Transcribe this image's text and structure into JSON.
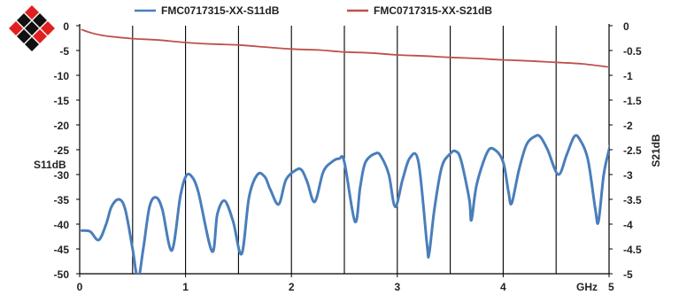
{
  "logo": {
    "icon": "diamond-grid-logo-icon",
    "colors": [
      "#e02020",
      "#111111"
    ]
  },
  "chart_data": {
    "type": "line",
    "x_label": "GHz",
    "y_left_label": "S11dB",
    "y_right_label": "S21dB",
    "x_range": [
      0,
      5
    ],
    "y_left_range": [
      -50,
      0
    ],
    "y_right_range": [
      -5,
      0
    ],
    "x_ticks": [
      "0",
      "1",
      "2",
      "3",
      "4",
      "5"
    ],
    "y_left_ticks": [
      "0",
      "-5",
      "-10",
      "-15",
      "-20",
      "-25",
      "-30",
      "-35",
      "-40",
      "-45",
      "-50"
    ],
    "y_right_ticks": [
      "0",
      "-0.5",
      "-1",
      "-1.5",
      "-2",
      "-2.5",
      "-3",
      "-3.5",
      "-4",
      "-4.5",
      "-5"
    ],
    "grid": "vertical-at-half-GHz",
    "legend_position": "top",
    "series": [
      {
        "name": "FMC0717315-XX-S11dB",
        "axis": "left",
        "color": "#4a7ebb",
        "points": [
          [
            0.02,
            -41.3
          ],
          [
            0.1,
            -41.5
          ],
          [
            0.18,
            -43.2
          ],
          [
            0.25,
            -40
          ],
          [
            0.3,
            -36.5
          ],
          [
            0.37,
            -35
          ],
          [
            0.43,
            -37
          ],
          [
            0.5,
            -45
          ],
          [
            0.55,
            -51
          ],
          [
            0.6,
            -45
          ],
          [
            0.66,
            -36.5
          ],
          [
            0.72,
            -34.6
          ],
          [
            0.78,
            -37
          ],
          [
            0.87,
            -45.3
          ],
          [
            0.95,
            -34.5
          ],
          [
            1.0,
            -30.5
          ],
          [
            1.05,
            -30.2
          ],
          [
            1.12,
            -33.5
          ],
          [
            1.25,
            -45.5
          ],
          [
            1.3,
            -38
          ],
          [
            1.37,
            -35.3
          ],
          [
            1.45,
            -39.5
          ],
          [
            1.53,
            -46
          ],
          [
            1.6,
            -34.5
          ],
          [
            1.68,
            -30
          ],
          [
            1.75,
            -30.5
          ],
          [
            1.8,
            -33
          ],
          [
            1.88,
            -36
          ],
          [
            1.95,
            -31
          ],
          [
            2.05,
            -29
          ],
          [
            2.1,
            -29.2
          ],
          [
            2.15,
            -31.5
          ],
          [
            2.22,
            -35.5
          ],
          [
            2.3,
            -29.5
          ],
          [
            2.38,
            -27.5
          ],
          [
            2.45,
            -26.8
          ],
          [
            2.5,
            -27.5
          ],
          [
            2.6,
            -39.5
          ],
          [
            2.65,
            -32.5
          ],
          [
            2.7,
            -27.5
          ],
          [
            2.8,
            -25.7
          ],
          [
            2.85,
            -26.5
          ],
          [
            2.92,
            -30
          ],
          [
            2.98,
            -36.5
          ],
          [
            3.05,
            -31
          ],
          [
            3.12,
            -26.6
          ],
          [
            3.2,
            -27.5
          ],
          [
            3.28,
            -44
          ],
          [
            3.3,
            -46
          ],
          [
            3.35,
            -37
          ],
          [
            3.42,
            -28.5
          ],
          [
            3.5,
            -25.8
          ],
          [
            3.55,
            -25.3
          ],
          [
            3.6,
            -27
          ],
          [
            3.68,
            -35
          ],
          [
            3.7,
            -39.2
          ],
          [
            3.75,
            -32
          ],
          [
            3.85,
            -25.5
          ],
          [
            3.92,
            -25
          ],
          [
            4.0,
            -27.5
          ],
          [
            4.05,
            -33.5
          ],
          [
            4.08,
            -35.8
          ],
          [
            4.15,
            -29
          ],
          [
            4.22,
            -24
          ],
          [
            4.3,
            -22.3
          ],
          [
            4.35,
            -22.4
          ],
          [
            4.42,
            -25
          ],
          [
            4.52,
            -30
          ],
          [
            4.6,
            -26
          ],
          [
            4.67,
            -22.4
          ],
          [
            4.72,
            -22.8
          ],
          [
            4.8,
            -27
          ],
          [
            4.87,
            -37
          ],
          [
            4.9,
            -39.5
          ],
          [
            4.95,
            -30
          ],
          [
            5.0,
            -25
          ],
          [
            5.02,
            -23.2
          ]
        ]
      },
      {
        "name": "FMC0717315-XX-S21dB",
        "axis": "right",
        "color": "#c0504d",
        "points": [
          [
            0.02,
            -0.08
          ],
          [
            0.1,
            -0.14
          ],
          [
            0.2,
            -0.19
          ],
          [
            0.3,
            -0.22
          ],
          [
            0.5,
            -0.26
          ],
          [
            0.75,
            -0.29
          ],
          [
            1.0,
            -0.34
          ],
          [
            1.25,
            -0.37
          ],
          [
            1.5,
            -0.39
          ],
          [
            1.75,
            -0.43
          ],
          [
            2.0,
            -0.47
          ],
          [
            2.25,
            -0.49
          ],
          [
            2.5,
            -0.53
          ],
          [
            2.75,
            -0.55
          ],
          [
            3.0,
            -0.59
          ],
          [
            3.25,
            -0.61
          ],
          [
            3.5,
            -0.64
          ],
          [
            3.75,
            -0.66
          ],
          [
            4.0,
            -0.69
          ],
          [
            4.25,
            -0.71
          ],
          [
            4.5,
            -0.74
          ],
          [
            4.75,
            -0.77
          ],
          [
            5.02,
            -0.84
          ]
        ]
      }
    ]
  }
}
